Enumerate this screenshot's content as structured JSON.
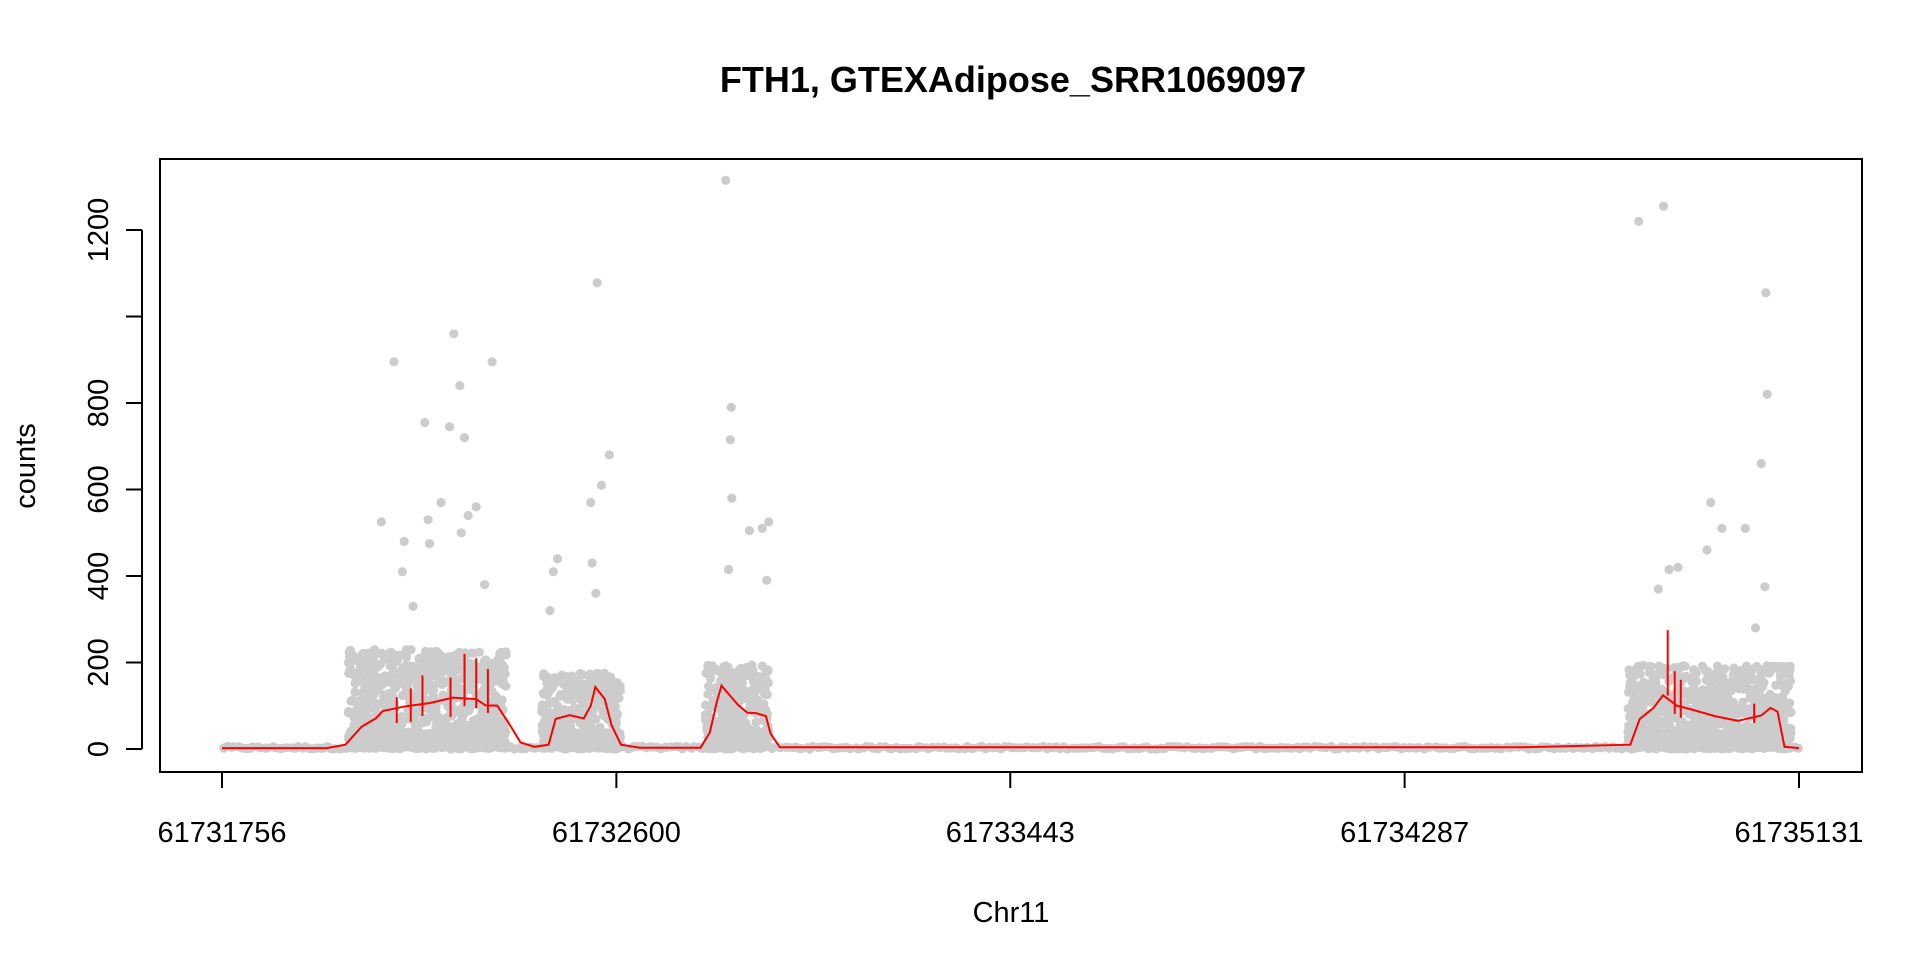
{
  "chart_data": {
    "type": "scatter",
    "title": "FTH1, GTEXAdipose_SRR1069097",
    "xlabel": "Chr11",
    "ylabel": "counts",
    "xlim": [
      61731756,
      61735131
    ],
    "ylim": [
      0,
      1300
    ],
    "x_ticks": [
      61731756,
      61732600,
      61733443,
      61734287,
      61735131
    ],
    "x_tick_labels": [
      "61731756",
      "61732600",
      "61733443",
      "61734287",
      "61735131"
    ],
    "y_ticks": [
      0,
      200,
      400,
      600,
      800,
      1000,
      1200
    ],
    "y_tick_labels": [
      "0",
      "200",
      "400",
      "600",
      "800",
      "",
      "1200"
    ],
    "grid": false,
    "legend": "none",
    "colors": {
      "points": "#cccccc",
      "smooth": "#ff0000",
      "frame": "#000000"
    },
    "series": [
      {
        "kind": "points",
        "regions": [
          {
            "x_start": 61732026,
            "x_end": 61732365,
            "level": 110,
            "spread": 120
          },
          {
            "x_start": 61732440,
            "x_end": 61732610,
            "level": 80,
            "spread": 95
          },
          {
            "x_start": 61732790,
            "x_end": 61732928,
            "level": 95,
            "spread": 100
          },
          {
            "x_start": 61734765,
            "x_end": 61735115,
            "level": 85,
            "spread": 110
          }
        ],
        "background_level": 3,
        "outliers": [
          {
            "x": 61732097,
            "y": 525
          },
          {
            "x": 61732124,
            "y": 895
          },
          {
            "x": 61732146,
            "y": 480
          },
          {
            "x": 61732142,
            "y": 410
          },
          {
            "x": 61732165,
            "y": 330
          },
          {
            "x": 61732190,
            "y": 755
          },
          {
            "x": 61732197,
            "y": 530
          },
          {
            "x": 61732200,
            "y": 475
          },
          {
            "x": 61732225,
            "y": 570
          },
          {
            "x": 61732243,
            "y": 745
          },
          {
            "x": 61732252,
            "y": 960
          },
          {
            "x": 61732265,
            "y": 840
          },
          {
            "x": 61732275,
            "y": 720
          },
          {
            "x": 61732283,
            "y": 540
          },
          {
            "x": 61732300,
            "y": 560
          },
          {
            "x": 61732268,
            "y": 500
          },
          {
            "x": 61732318,
            "y": 380
          },
          {
            "x": 61732334,
            "y": 895
          },
          {
            "x": 61732458,
            "y": 320
          },
          {
            "x": 61732465,
            "y": 410
          },
          {
            "x": 61732474,
            "y": 440
          },
          {
            "x": 61732545,
            "y": 570
          },
          {
            "x": 61732548,
            "y": 430
          },
          {
            "x": 61732559,
            "y": 1078
          },
          {
            "x": 61732568,
            "y": 610
          },
          {
            "x": 61732585,
            "y": 680
          },
          {
            "x": 61732556,
            "y": 360
          },
          {
            "x": 61732834,
            "y": 1315
          },
          {
            "x": 61732846,
            "y": 790
          },
          {
            "x": 61732844,
            "y": 715
          },
          {
            "x": 61732847,
            "y": 580
          },
          {
            "x": 61732840,
            "y": 415
          },
          {
            "x": 61732885,
            "y": 505
          },
          {
            "x": 61732912,
            "y": 510
          },
          {
            "x": 61732926,
            "y": 525
          },
          {
            "x": 61732922,
            "y": 390
          },
          {
            "x": 61734788,
            "y": 1220
          },
          {
            "x": 61734841,
            "y": 1255
          },
          {
            "x": 61734830,
            "y": 370
          },
          {
            "x": 61734853,
            "y": 415
          },
          {
            "x": 61734872,
            "y": 420
          },
          {
            "x": 61734934,
            "y": 460
          },
          {
            "x": 61734942,
            "y": 570
          },
          {
            "x": 61734966,
            "y": 510
          },
          {
            "x": 61735016,
            "y": 510
          },
          {
            "x": 61735060,
            "y": 1055
          },
          {
            "x": 61735063,
            "y": 820
          },
          {
            "x": 61735050,
            "y": 660
          },
          {
            "x": 61735058,
            "y": 375
          },
          {
            "x": 61735038,
            "y": 280
          }
        ]
      },
      {
        "kind": "line",
        "x": [
          61731756,
          61731980,
          61732020,
          61732055,
          61732085,
          61732100,
          61732150,
          61732200,
          61732250,
          61732300,
          61732320,
          61732345,
          61732370,
          61732395,
          61732425,
          61732455,
          61732470,
          61732500,
          61732530,
          61732545,
          61732555,
          61732575,
          61732590,
          61732610,
          61732650,
          61732780,
          61732800,
          61732815,
          61732825,
          61732840,
          61732860,
          61732880,
          61732900,
          61732920,
          61732930,
          61732950,
          61734540,
          61734770,
          61734790,
          61734820,
          61734840,
          61734870,
          61734900,
          61734950,
          61735000,
          61735050,
          61735070,
          61735085,
          61735100,
          61735131
        ],
        "y": [
          2,
          2,
          10,
          45,
          75,
          85,
          100,
          110,
          115,
          112,
          105,
          95,
          65,
          15,
          5,
          10,
          70,
          75,
          65,
          95,
          145,
          120,
          60,
          10,
          3,
          3,
          40,
          110,
          140,
          130,
          100,
          85,
          88,
          80,
          40,
          4,
          4,
          10,
          70,
          100,
          125,
          95,
          90,
          80,
          68,
          72,
          95,
          90,
          5,
          2
        ],
        "spikes": [
          {
            "x": 61732130,
            "y": 120
          },
          {
            "x": 61732160,
            "y": 140
          },
          {
            "x": 61732185,
            "y": 170
          },
          {
            "x": 61732245,
            "y": 165
          },
          {
            "x": 61732275,
            "y": 220
          },
          {
            "x": 61732300,
            "y": 210
          },
          {
            "x": 61732325,
            "y": 185
          },
          {
            "x": 61734850,
            "y": 275
          },
          {
            "x": 61734865,
            "y": 180
          },
          {
            "x": 61734878,
            "y": 160
          },
          {
            "x": 61735035,
            "y": 105
          }
        ]
      }
    ]
  }
}
